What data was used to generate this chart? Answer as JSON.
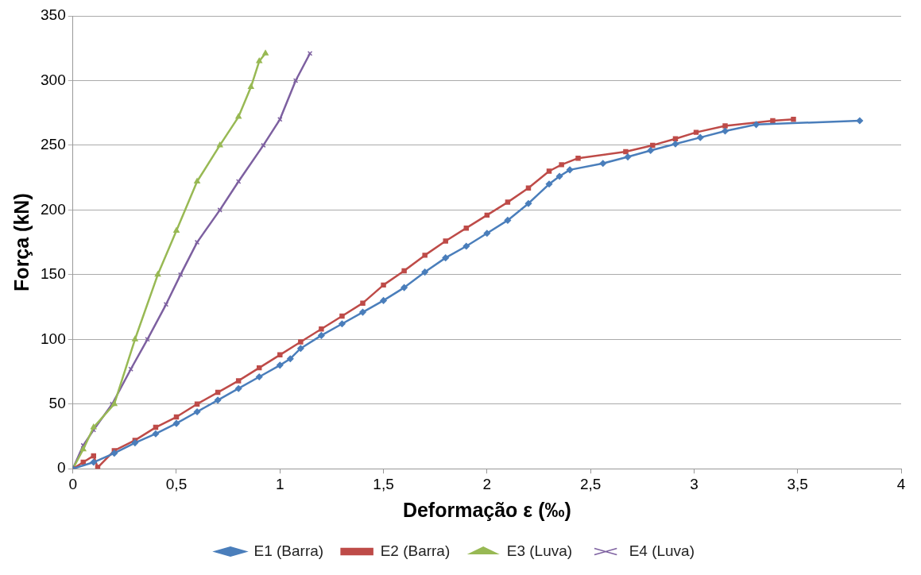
{
  "chart_data": {
    "type": "line",
    "xlabel": "Deformação ε (‰)",
    "ylabel": "Força (kN)",
    "xlim": [
      0,
      4
    ],
    "xticks": [
      0,
      {
        "value": 0.5,
        "label": "0,5"
      },
      1,
      {
        "value": 1.5,
        "label": "1,5"
      },
      2,
      {
        "value": 2.5,
        "label": "2,5"
      },
      3,
      {
        "value": 3.5,
        "label": "3,5"
      },
      4
    ],
    "ylim": [
      0,
      350
    ],
    "yticks": [
      0,
      50,
      100,
      150,
      200,
      250,
      300,
      350
    ],
    "grid": "y",
    "legend": "bottom",
    "line_style": "solid",
    "series": [
      {
        "name": "E1 (Barra)",
        "color": "#4a7ebb",
        "marker": "diamond",
        "x": [
          0,
          0.1,
          0.2,
          0.3,
          0.4,
          0.5,
          0.6,
          0.7,
          0.8,
          0.9,
          1.0,
          1.05,
          1.1,
          1.2,
          1.3,
          1.4,
          1.5,
          1.6,
          1.7,
          1.8,
          1.9,
          2.0,
          2.1,
          2.2,
          2.3,
          2.35,
          2.4,
          2.56,
          2.68,
          2.79,
          2.91,
          3.03,
          3.15,
          3.3,
          3.8
        ],
        "values": [
          0,
          5,
          12,
          20,
          27,
          35,
          44,
          53,
          62,
          71,
          80,
          85,
          93,
          103,
          112,
          121,
          130,
          140,
          152,
          163,
          172,
          182,
          192,
          205,
          220,
          226,
          231,
          236,
          241,
          246,
          251,
          256,
          261,
          266,
          269
        ]
      },
      {
        "name": "E2 (Barra)",
        "color": "#be4b48",
        "marker": "square",
        "x": [
          0,
          0.05,
          0.1,
          0.12,
          0.2,
          0.3,
          0.4,
          0.5,
          0.6,
          0.7,
          0.8,
          0.9,
          1.0,
          1.1,
          1.2,
          1.3,
          1.4,
          1.5,
          1.6,
          1.7,
          1.8,
          1.9,
          2.0,
          2.1,
          2.2,
          2.3,
          2.36,
          2.44,
          2.67,
          2.8,
          2.91,
          3.01,
          3.15,
          3.38,
          3.48
        ],
        "values": [
          0,
          5,
          10,
          1,
          14,
          22,
          32,
          40,
          50,
          59,
          68,
          78,
          88,
          98,
          108,
          118,
          128,
          142,
          153,
          165,
          176,
          186,
          196,
          206,
          217,
          230,
          235,
          240,
          245,
          250,
          255,
          260,
          265,
          269,
          270
        ]
      },
      {
        "name": "E3 (Luva)",
        "color": "#98b954",
        "marker": "triangle",
        "x": [
          0,
          0.05,
          0.1,
          0.2,
          0.3,
          0.41,
          0.5,
          0.6,
          0.71,
          0.8,
          0.86,
          0.9,
          0.93
        ],
        "values": [
          0,
          15,
          32,
          50,
          100,
          150,
          184,
          222,
          250,
          272,
          295,
          315,
          321
        ]
      },
      {
        "name": "E4 (Luva)",
        "color": "#7d60a0",
        "marker": "cross",
        "x": [
          0,
          0.05,
          0.1,
          0.19,
          0.28,
          0.36,
          0.45,
          0.52,
          0.6,
          0.71,
          0.8,
          0.92,
          1.0,
          1.076,
          1.145
        ],
        "values": [
          0,
          18,
          30,
          50,
          77,
          100,
          127,
          150,
          175,
          200,
          222,
          250,
          270,
          300,
          321
        ]
      }
    ]
  }
}
